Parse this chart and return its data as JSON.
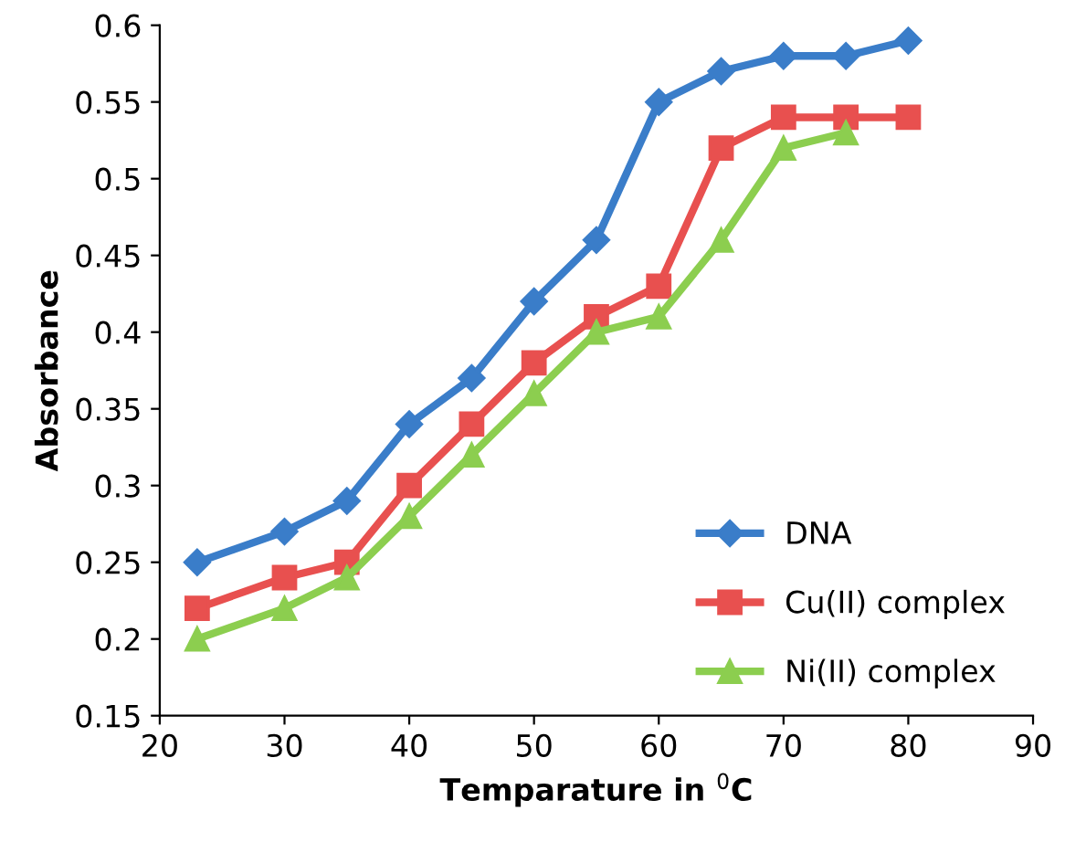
{
  "chart_data": {
    "type": "line",
    "xlabel": "Temparature in $^{0}$C",
    "ylabel": "Absorbance",
    "xlim": [
      20,
      90
    ],
    "xticks": [
      20,
      30,
      40,
      50,
      60,
      70,
      80,
      90
    ],
    "ylim": [
      0.15,
      0.6
    ],
    "yticks": [
      0.15,
      0.2,
      0.25,
      0.3,
      0.35,
      0.4,
      0.45,
      0.5,
      0.55,
      0.6
    ],
    "grid": false,
    "legend": "bottom right",
    "line_style": "solid",
    "series": [
      {
        "name": "DNA",
        "color": "#3a7dc9",
        "marker": "diamond",
        "x": [
          23,
          30,
          35,
          40,
          45,
          50,
          55,
          60,
          65,
          70,
          75,
          80
        ],
        "values": [
          0.25,
          0.27,
          0.29,
          0.34,
          0.37,
          0.42,
          0.46,
          0.55,
          0.57,
          0.58,
          0.58,
          0.59
        ]
      },
      {
        "name": "Cu(II) complex",
        "color": "#e8504f",
        "marker": "square",
        "x": [
          23,
          30,
          35,
          40,
          45,
          50,
          55,
          60,
          65,
          70,
          75,
          80
        ],
        "values": [
          0.22,
          0.24,
          0.25,
          0.3,
          0.34,
          0.38,
          0.41,
          0.43,
          0.52,
          0.54,
          0.54,
          0.54
        ]
      },
      {
        "name": "Ni(II) complex",
        "color": "#8cce4f",
        "marker": "triangle",
        "x": [
          23,
          30,
          35,
          40,
          45,
          50,
          55,
          60,
          65,
          70,
          75
        ],
        "values": [
          0.2,
          0.22,
          0.24,
          0.28,
          0.32,
          0.36,
          0.4,
          0.41,
          0.46,
          0.52,
          0.53
        ]
      }
    ]
  }
}
